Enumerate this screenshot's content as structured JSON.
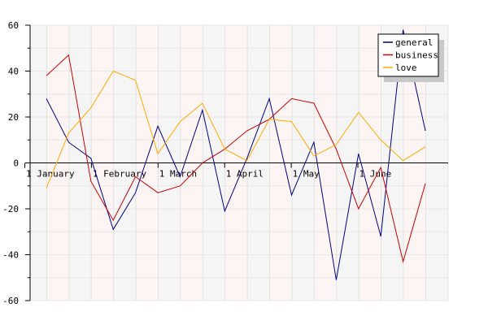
{
  "chart_data": {
    "type": "line",
    "title": "",
    "xlabel": "",
    "ylabel": "",
    "ylim": [
      -60,
      60
    ],
    "y_ticks": [
      60,
      40,
      20,
      0,
      -20,
      -40,
      -60
    ],
    "x_tick_labels": [
      "1 January",
      "1 February",
      "1 March",
      "1 April",
      "1 May",
      "1 June"
    ],
    "x_label_positions": [
      0,
      3,
      6,
      9,
      12,
      15
    ],
    "num_points": 18,
    "grid": true,
    "legend_position": "top-right",
    "series": [
      {
        "name": "general",
        "color": "#000080",
        "values": [
          28,
          9,
          2,
          -29,
          -13,
          16,
          -6,
          23,
          -21,
          2,
          28,
          -14,
          9,
          -51,
          4,
          -32,
          58,
          14
        ]
      },
      {
        "name": "business",
        "color": "#cc0000",
        "values": [
          38,
          47,
          -8,
          -25,
          -6,
          -13,
          -10,
          0,
          6,
          14,
          19,
          28,
          26,
          6,
          -20,
          -2,
          -43,
          -9
        ]
      },
      {
        "name": "love",
        "color": "#ffaa00",
        "values": [
          -11,
          13,
          24,
          40,
          36,
          4,
          18,
          26,
          6,
          1,
          19,
          18,
          3,
          8,
          22,
          10,
          1,
          7
        ]
      }
    ]
  }
}
